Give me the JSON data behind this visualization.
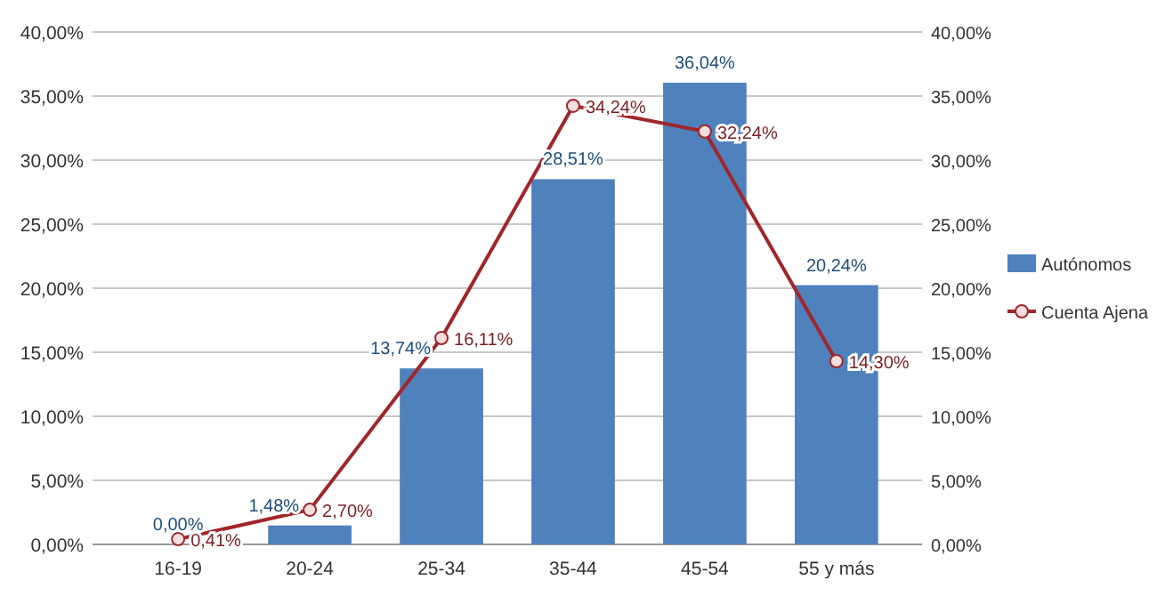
{
  "chart_data": {
    "type": "bar",
    "categories": [
      "16-19",
      "20-24",
      "25-34",
      "35-44",
      "45-54",
      "55 y más"
    ],
    "series": [
      {
        "name": "Autónomos",
        "color": "#4f81bd",
        "values": [
          0,
          1.48,
          13.74,
          28.51,
          36.04,
          20.24
        ],
        "value_labels": [
          "0,00%",
          "1,48%",
          "13,74%",
          "28,51%",
          "36,04%",
          "20,24%"
        ]
      },
      {
        "name": "Cuenta Ajena",
        "type": "line",
        "axis": "y2",
        "color": "#a0262a",
        "marker": "circle",
        "line_style": "solid",
        "values": [
          0.41,
          2.7,
          16.11,
          34.24,
          32.24,
          14.3
        ],
        "value_labels": [
          "0,41%",
          "2,70%",
          "16,11%",
          "34,24%",
          "32,24%",
          "14,30%"
        ]
      }
    ],
    "ylim": [
      0,
      40
    ],
    "yticks": [
      {
        "value": 0,
        "label": "0,00%"
      },
      {
        "value": 5,
        "label": "5,00%"
      },
      {
        "value": 10,
        "label": "10,00%"
      },
      {
        "value": 15,
        "label": "15,00%"
      },
      {
        "value": 20,
        "label": "20,00%"
      },
      {
        "value": 25,
        "label": "25,00%"
      },
      {
        "value": 30,
        "label": "30,00%"
      },
      {
        "value": 35,
        "label": "35,00%"
      },
      {
        "value": 40,
        "label": "40,00%"
      }
    ],
    "y2lim": [
      0,
      40
    ],
    "y2ticks": [
      {
        "value": 0,
        "label": "0,00%"
      },
      {
        "value": 5,
        "label": "5,00%"
      },
      {
        "value": 10,
        "label": "10,00%"
      },
      {
        "value": 15,
        "label": "15,00%"
      },
      {
        "value": 20,
        "label": "20,00%"
      },
      {
        "value": 25,
        "label": "25,00%"
      },
      {
        "value": 30,
        "label": "30,00%"
      },
      {
        "value": 35,
        "label": "35,00%"
      },
      {
        "value": 40,
        "label": "40,00%"
      }
    ],
    "grid": "y",
    "legend": "right"
  }
}
